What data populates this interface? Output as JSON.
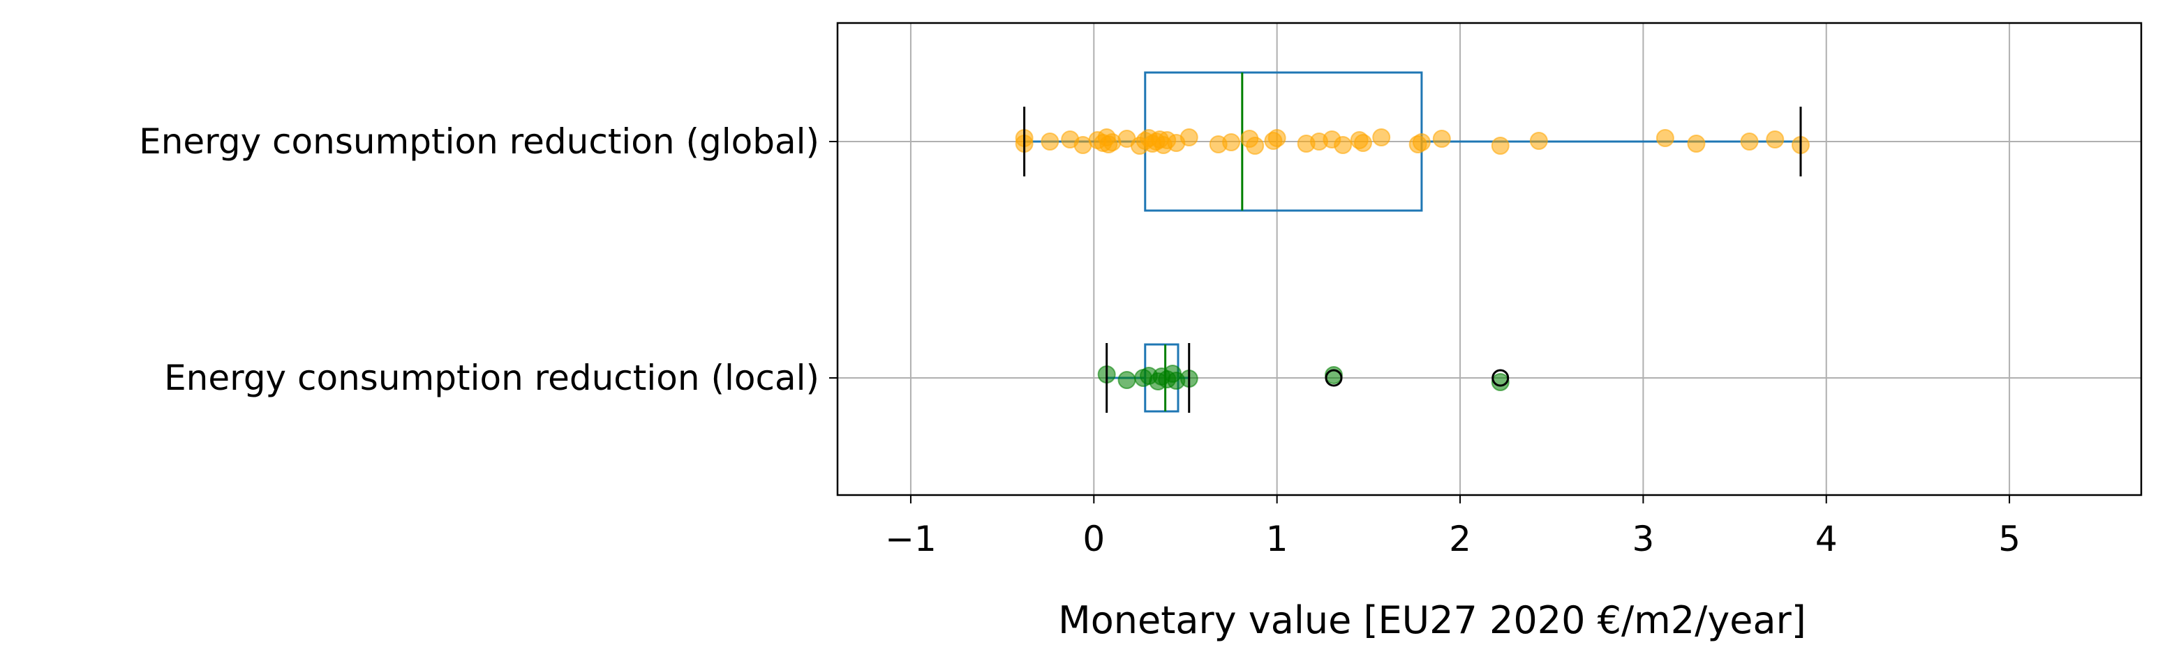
{
  "chart_data": {
    "type": "boxplot",
    "title": "",
    "xlabel": "Monetary value [EU27 2020 €/m2/year]",
    "ylabel": "",
    "xlim": [
      -1.4,
      5.72
    ],
    "xticks": [
      -1,
      0,
      1,
      2,
      3,
      4,
      5
    ],
    "xtick_labels": [
      "−1",
      "0",
      "1",
      "2",
      "3",
      "4",
      "5"
    ],
    "grid": true,
    "colors": {
      "box": "#1f77b4",
      "median": "#008000",
      "whisker_cap": "#000000",
      "grid": "#b0b0b0",
      "frame": "#000000"
    },
    "series": [
      {
        "label": "Energy consumption reduction (global)",
        "box": {
          "whislo": -0.38,
          "q1": 0.28,
          "median": 0.81,
          "q3": 1.79,
          "whishi": 3.86
        },
        "fliers": [],
        "points_color": "#ffa500",
        "points": [
          -0.38,
          -0.38,
          -0.24,
          -0.13,
          -0.06,
          0.02,
          0.05,
          0.07,
          0.08,
          0.1,
          0.18,
          0.25,
          0.28,
          0.3,
          0.32,
          0.34,
          0.36,
          0.38,
          0.4,
          0.45,
          0.52,
          0.68,
          0.75,
          0.85,
          0.88,
          0.98,
          1.0,
          1.16,
          1.23,
          1.3,
          1.36,
          1.45,
          1.47,
          1.57,
          1.77,
          1.79,
          1.9,
          2.22,
          2.43,
          3.12,
          3.29,
          3.58,
          3.72,
          3.86
        ]
      },
      {
        "label": "Energy consumption reduction (local)",
        "box": {
          "whislo": 0.07,
          "q1": 0.28,
          "median": 0.39,
          "q3": 0.46,
          "whishi": 0.52
        },
        "fliers": [
          1.31,
          2.22
        ],
        "points_color": "#008000",
        "points": [
          0.07,
          0.18,
          0.27,
          0.3,
          0.35,
          0.37,
          0.4,
          0.43,
          0.45,
          0.52,
          1.31,
          2.22
        ]
      }
    ]
  }
}
